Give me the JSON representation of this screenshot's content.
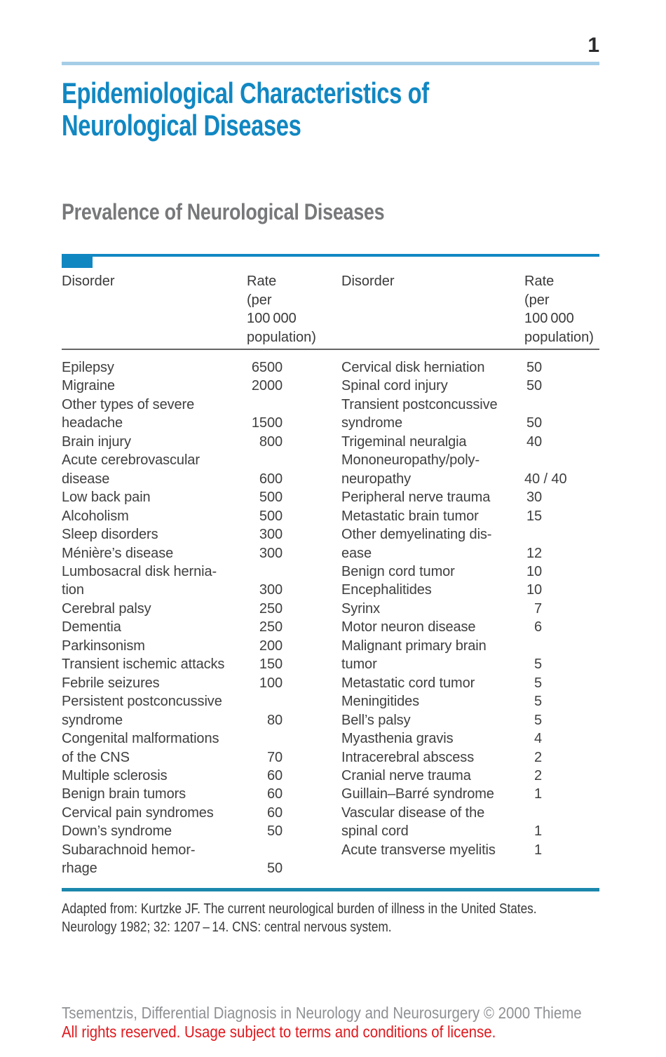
{
  "page": {
    "number": "1"
  },
  "title": "Epidemiological Characteristics of Neurological Diseases",
  "section_heading": "Prevalence of Neurological Diseases",
  "table": {
    "col_headers": {
      "disorder": "Disorder",
      "rate_lines": [
        "Rate",
        "(per",
        "100 000",
        "population)"
      ]
    },
    "left_rows": [
      {
        "name_lines": [
          "Epilepsy"
        ],
        "rate": "6500"
      },
      {
        "name_lines": [
          "Migraine"
        ],
        "rate": "2000"
      },
      {
        "name_lines": [
          "Other types of severe",
          "headache"
        ],
        "rate": "1500"
      },
      {
        "name_lines": [
          "Brain injury"
        ],
        "rate": "800"
      },
      {
        "name_lines": [
          "Acute cerebrovascular",
          "disease"
        ],
        "rate": "600"
      },
      {
        "name_lines": [
          "Low back pain"
        ],
        "rate": "500"
      },
      {
        "name_lines": [
          "Alcoholism"
        ],
        "rate": "500"
      },
      {
        "name_lines": [
          "Sleep disorders"
        ],
        "rate": "300"
      },
      {
        "name_lines": [
          "Ménière’s disease"
        ],
        "rate": "300"
      },
      {
        "name_lines": [
          "Lumbosacral disk hernia-",
          "tion"
        ],
        "rate": "300"
      },
      {
        "name_lines": [
          "Cerebral palsy"
        ],
        "rate": "250"
      },
      {
        "name_lines": [
          "Dementia"
        ],
        "rate": "250"
      },
      {
        "name_lines": [
          "Parkinsonism"
        ],
        "rate": "200"
      },
      {
        "name_lines": [
          "Transient ischemic attacks"
        ],
        "rate": "150"
      },
      {
        "name_lines": [
          "Febrile seizures"
        ],
        "rate": "100"
      },
      {
        "name_lines": [
          "Persistent postconcussive",
          "syndrome"
        ],
        "rate": "80"
      },
      {
        "name_lines": [
          "Congenital malformations",
          "of the CNS"
        ],
        "rate": "70"
      },
      {
        "name_lines": [
          "Multiple sclerosis"
        ],
        "rate": "60"
      },
      {
        "name_lines": [
          "Benign brain tumors"
        ],
        "rate": "60"
      },
      {
        "name_lines": [
          "Cervical pain syndromes"
        ],
        "rate": "60"
      },
      {
        "name_lines": [
          "Down’s syndrome"
        ],
        "rate": "50"
      },
      {
        "name_lines": [
          "Subarachnoid hemor-",
          "rhage"
        ],
        "rate": "50"
      }
    ],
    "right_rows": [
      {
        "name_lines": [
          "Cervical disk herniation"
        ],
        "rate": "50"
      },
      {
        "name_lines": [
          "Spinal cord injury"
        ],
        "rate": "50"
      },
      {
        "name_lines": [
          "Transient postconcussive",
          "syndrome"
        ],
        "rate": "50"
      },
      {
        "name_lines": [
          "Trigeminal neuralgia"
        ],
        "rate": "40"
      },
      {
        "name_lines": [
          "Mononeuropathy/poly-",
          "neuropathy"
        ],
        "rate": "40 / 40"
      },
      {
        "name_lines": [
          "Peripheral nerve trauma"
        ],
        "rate": "30"
      },
      {
        "name_lines": [
          "Metastatic brain tumor"
        ],
        "rate": "15"
      },
      {
        "name_lines": [
          "Other demyelinating dis-",
          "ease"
        ],
        "rate": "12"
      },
      {
        "name_lines": [
          "Benign cord tumor"
        ],
        "rate": "10"
      },
      {
        "name_lines": [
          "Encephalitides"
        ],
        "rate": "10"
      },
      {
        "name_lines": [
          "Syrinx"
        ],
        "rate": "7"
      },
      {
        "name_lines": [
          "Motor neuron disease"
        ],
        "rate": "6"
      },
      {
        "name_lines": [
          "Malignant primary brain",
          "tumor"
        ],
        "rate": "5"
      },
      {
        "name_lines": [
          "Metastatic cord tumor"
        ],
        "rate": "5"
      },
      {
        "name_lines": [
          "Meningitides"
        ],
        "rate": "5"
      },
      {
        "name_lines": [
          "Bell’s palsy"
        ],
        "rate": "5"
      },
      {
        "name_lines": [
          "Myasthenia gravis"
        ],
        "rate": "4"
      },
      {
        "name_lines": [
          "Intracerebral abscess"
        ],
        "rate": "2"
      },
      {
        "name_lines": [
          "Cranial nerve trauma"
        ],
        "rate": "2"
      },
      {
        "name_lines": [
          "Guillain–Barré syndrome"
        ],
        "rate": "1"
      },
      {
        "name_lines": [
          "Vascular disease of the",
          "spinal cord"
        ],
        "rate": "1"
      },
      {
        "name_lines": [
          "Acute transverse myelitis"
        ],
        "rate": "1"
      }
    ]
  },
  "footnote_lines": [
    "Adapted from: Kurtzke JF. The current neurological burden of illness in the United States.",
    "Neurology 1982; 32: 1207 – 14. CNS: central nervous system."
  ],
  "footer": {
    "credit": "Tsementzis, Differential Diagnosis in Neurology and Neurosurgery © 2000 Thieme",
    "rights": "All rights reserved. Usage subject to terms and conditions of license."
  },
  "colors": {
    "accent_blue": "#1187c2",
    "light_blue": "#a5cde7",
    "teal_rule": "#1b87ac",
    "heading_gray": "#77787a",
    "text_dark": "#3f3e40",
    "footer_gray": "#8e9093",
    "footer_red": "#e0181d"
  }
}
